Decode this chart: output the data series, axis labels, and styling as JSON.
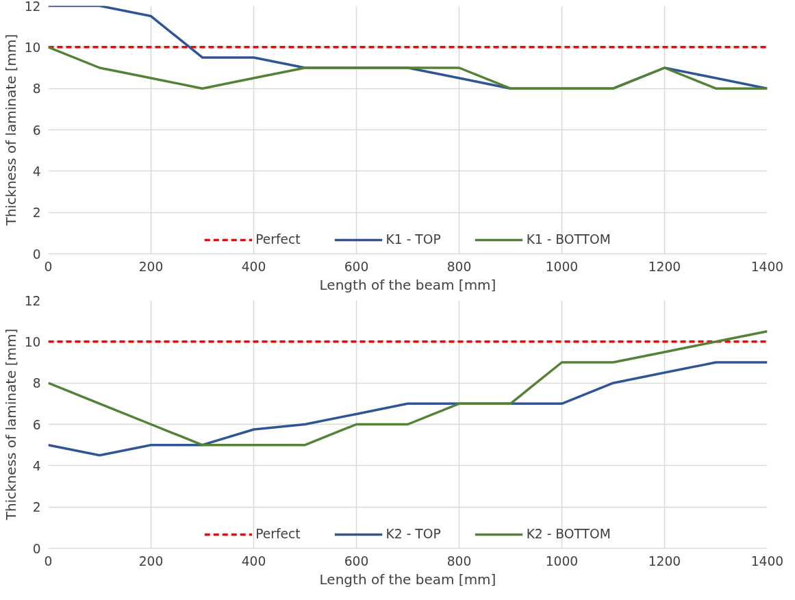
{
  "chart_data": [
    {
      "type": "line",
      "xlabel": "Length of the beam [mm]",
      "ylabel": "Thickness of laminate [mm]",
      "x": [
        0,
        100,
        200,
        300,
        400,
        500,
        600,
        700,
        800,
        900,
        1000,
        1100,
        1200,
        1300,
        1400
      ],
      "xlim": [
        0,
        1400
      ],
      "xticks": [
        0,
        200,
        400,
        600,
        800,
        1000,
        1200,
        1400
      ],
      "ylim": [
        0,
        12
      ],
      "yticks": [
        0,
        2,
        4,
        6,
        8,
        10,
        12
      ],
      "grid": true,
      "legend": "bottom",
      "marker": "none",
      "series": [
        {
          "name": "Perfect",
          "color": "#ff0000",
          "line_style": "dashed",
          "values": [
            10,
            10,
            10,
            10,
            10,
            10,
            10,
            10,
            10,
            10,
            10,
            10,
            10,
            10,
            10
          ]
        },
        {
          "name": "K1 - TOP",
          "color": "#2f5597",
          "line_style": "solid",
          "values": [
            12,
            12,
            11.5,
            9.5,
            9.5,
            9,
            9,
            9,
            8.5,
            8,
            8,
            8,
            9,
            8.5,
            8
          ]
        },
        {
          "name": "K1 - BOTTOM",
          "color": "#548235",
          "line_style": "solid",
          "values": [
            10,
            9,
            8.5,
            8,
            8.5,
            9,
            9,
            9,
            9,
            8,
            8,
            8,
            9,
            8,
            8
          ]
        }
      ]
    },
    {
      "type": "line",
      "xlabel": "Length of the beam [mm]",
      "ylabel": "Thickness of laminate [mm]",
      "x": [
        0,
        100,
        200,
        300,
        400,
        500,
        600,
        700,
        800,
        900,
        1000,
        1100,
        1200,
        1300,
        1400
      ],
      "xlim": [
        0,
        1400
      ],
      "xticks": [
        0,
        200,
        400,
        600,
        800,
        1000,
        1200,
        1400
      ],
      "ylim": [
        0,
        12
      ],
      "yticks": [
        0,
        2,
        4,
        6,
        8,
        10,
        12
      ],
      "grid": true,
      "legend": "bottom",
      "marker": "none",
      "series": [
        {
          "name": "Perfect",
          "color": "#ff0000",
          "line_style": "dashed",
          "values": [
            10,
            10,
            10,
            10,
            10,
            10,
            10,
            10,
            10,
            10,
            10,
            10,
            10,
            10,
            10
          ]
        },
        {
          "name": "K2 - TOP",
          "color": "#2f5597",
          "line_style": "solid",
          "values": [
            5,
            4.5,
            5,
            5,
            5.75,
            6,
            6.5,
            7,
            7,
            7,
            7,
            8,
            8.5,
            9,
            9
          ]
        },
        {
          "name": "K2 - BOTTOM",
          "color": "#548235",
          "line_style": "solid",
          "values": [
            8,
            7,
            6,
            5,
            5,
            5,
            6,
            6,
            7,
            7,
            9,
            9,
            9.5,
            10,
            10.5
          ]
        }
      ]
    }
  ]
}
